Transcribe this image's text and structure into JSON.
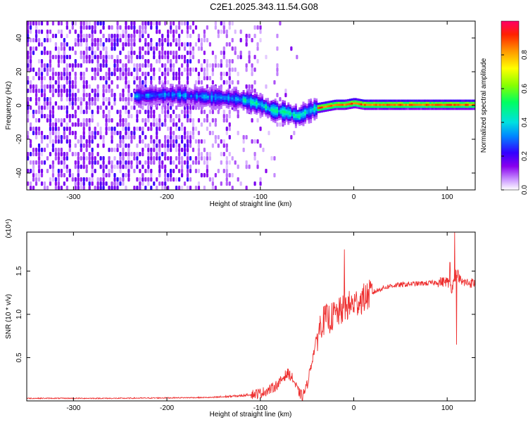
{
  "title": "C2E1.2025.343.11.54.G08",
  "chart_data": [
    {
      "type": "heatmap",
      "xlabel": "Height of straight line (km)",
      "ylabel": "Frequency (Hz)",
      "xlim": [
        -350,
        130
      ],
      "ylim": [
        -50,
        50
      ],
      "xticks": [
        -300,
        -200,
        -100,
        0,
        100
      ],
      "yticks": [
        -40,
        -20,
        0,
        20,
        40
      ],
      "colorbar": {
        "label": "Normalized spectral amplitude",
        "range": [
          0,
          1
        ],
        "ticks": [
          0.0,
          0.2,
          0.4,
          0.6,
          0.8
        ]
      },
      "signal_track": {
        "x": [
          -235,
          -200,
          -170,
          -140,
          -120,
          -100,
          -90,
          -80,
          -70,
          -60,
          -50,
          -40,
          -30,
          -20,
          -10,
          0,
          10,
          50,
          100,
          130
        ],
        "y": [
          5,
          6,
          5,
          4,
          3,
          0,
          -3,
          -4,
          -5,
          -7,
          -4,
          -2,
          -1,
          0,
          0,
          1,
          0,
          0,
          0,
          0
        ]
      }
    },
    {
      "type": "line",
      "xlabel": "Height of straight line (km)",
      "ylabel": "SNR (10 * v/v)",
      "yscale_label": "(x10⁴)",
      "xlim": [
        -350,
        130
      ],
      "ylim": [
        0,
        1.95
      ],
      "xticks": [
        -300,
        -200,
        -100,
        0,
        100
      ],
      "yticks": [
        0.5,
        1.0,
        1.5
      ],
      "line_color": "#ee3030",
      "series": [
        {
          "x": [
            -350,
            -300,
            -250,
            -200,
            -150,
            -120,
            -100,
            -90,
            -80,
            -75,
            -70,
            -65,
            -60,
            -55,
            -50,
            -45,
            -40,
            -35,
            -30,
            -25,
            -20,
            -15,
            -10,
            -5,
            0,
            10,
            20,
            30,
            40,
            60,
            80,
            100,
            105,
            110,
            115,
            130
          ],
          "y": [
            0.03,
            0.03,
            0.03,
            0.035,
            0.04,
            0.06,
            0.09,
            0.13,
            0.2,
            0.28,
            0.32,
            0.25,
            0.12,
            0.05,
            0.18,
            0.45,
            0.7,
            0.9,
            0.95,
            0.95,
            1.0,
            1.02,
            1.08,
            1.1,
            1.12,
            1.18,
            1.25,
            1.3,
            1.33,
            1.35,
            1.36,
            1.38,
            1.3,
            1.5,
            1.37,
            1.36
          ],
          "spikes": [
            {
              "x": -10,
              "y": 1.75
            },
            {
              "x": 108,
              "y": 1.95
            },
            {
              "x": 110,
              "y": 0.65
            },
            {
              "x": 103,
              "y": 1.6
            }
          ]
        }
      ]
    }
  ]
}
